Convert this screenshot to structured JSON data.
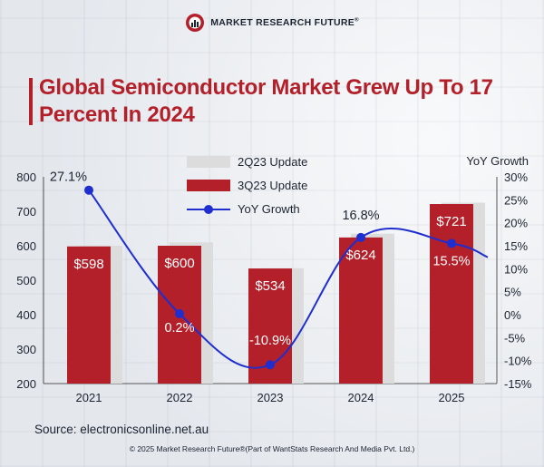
{
  "header": {
    "brand": "MARKET RESEARCH FUTURE",
    "brand_mark": "®"
  },
  "title": "Global Semiconductor Market Grew Up To 17 Percent In 2024",
  "chart_data": {
    "type": "bar",
    "categories": [
      "2021",
      "2022",
      "2023",
      "2024",
      "2025"
    ],
    "series": [
      {
        "name": "2Q23 Update",
        "kind": "bar",
        "values": [
          600,
          610,
          535,
          635,
          725
        ],
        "color": "#dcdcdc"
      },
      {
        "name": "3Q23 Update",
        "kind": "bar",
        "values": [
          598,
          600,
          534,
          624,
          721
        ],
        "labels": [
          "$598",
          "$600",
          "$534",
          "$624",
          "$721"
        ],
        "color": "#b3202a"
      },
      {
        "name": "YoY Growth",
        "kind": "line",
        "axis": "right",
        "values": [
          27.1,
          0.2,
          -10.9,
          16.8,
          15.5
        ],
        "labels": [
          "27.1%",
          "0.2%",
          "-10.9%",
          "16.8%",
          "15.5%"
        ],
        "color": "#1f2ecf"
      }
    ],
    "y_left": {
      "min": 200,
      "max": 800,
      "ticks": [
        "200",
        "300",
        "400",
        "500",
        "600",
        "700",
        "800"
      ]
    },
    "y_right": {
      "label": "YoY Growth",
      "min": -15,
      "max": 30,
      "ticks": [
        "-15%",
        "-10%",
        "-5%",
        "0%",
        "5%",
        "10%",
        "15%",
        "20%",
        "25%",
        "30%"
      ]
    },
    "legend": {
      "position": "top-center",
      "items": [
        "2Q23 Update",
        "3Q23 Update",
        "YoY Growth"
      ]
    }
  },
  "source": "Source: electronicsonline.net.au",
  "copyright": "© 2025 Market Research Future®(Part of WantStats Research And Media Pvt. Ltd.)"
}
